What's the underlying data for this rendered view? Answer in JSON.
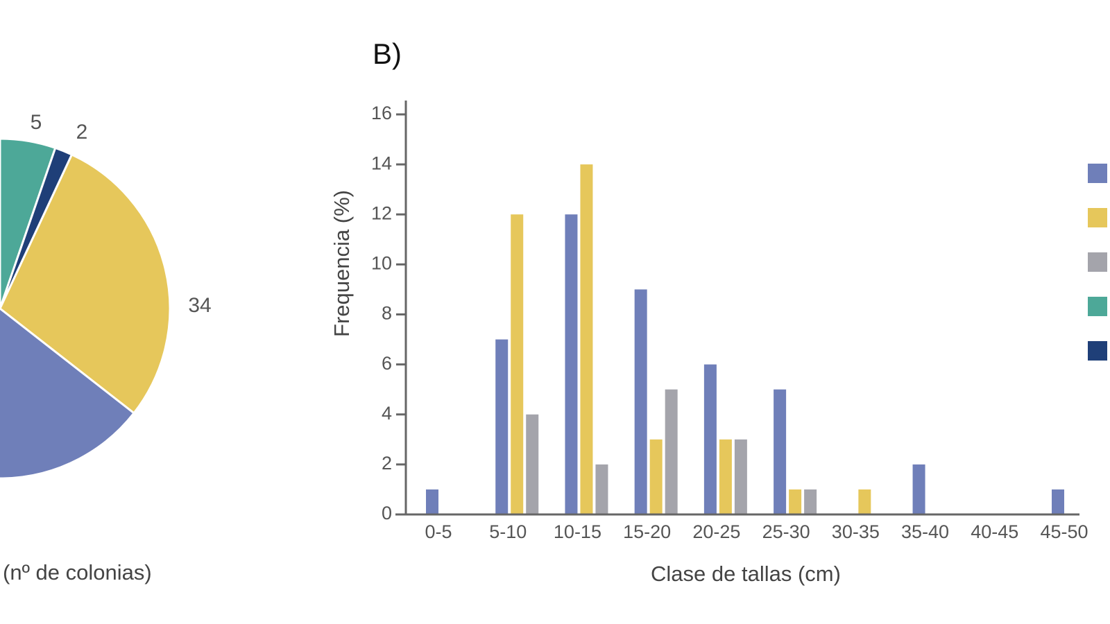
{
  "colors": {
    "blue": "#6f7fb9",
    "yellow": "#e6c75b",
    "gray": "#a4a4ab",
    "teal": "#4da898",
    "navy": "#1f3f78",
    "axis": "#666666",
    "text": "#555555"
  },
  "chart_data": [
    {
      "type": "pie",
      "panel": "",
      "title": "",
      "caption": "(nº de colonias)",
      "slices": [
        {
          "label": "5",
          "value": 5,
          "color": "teal"
        },
        {
          "label": "2",
          "value": 2,
          "color": "navy"
        },
        {
          "label": "34",
          "value": 34,
          "color": "yellow"
        },
        {
          "label": "",
          "value": 20,
          "color": "blue"
        }
      ],
      "note": "pie is cropped at left edge; only slices with visible labels 5, 2, 34 are labeled"
    },
    {
      "type": "bar",
      "panel": "B)",
      "title": "",
      "xlabel": "Clase de tallas (cm)",
      "ylabel": "Frequencia (%)",
      "ylim": [
        0,
        16
      ],
      "yticks": [
        "0",
        "2",
        "4",
        "6",
        "8",
        "10",
        "12",
        "14",
        "16"
      ],
      "categories": [
        "0-5",
        "5-10",
        "10-15",
        "15-20",
        "20-25",
        "25-30",
        "30-35",
        "35-40",
        "40-45",
        "45-50"
      ],
      "series": [
        {
          "color": "blue",
          "values": [
            1,
            7,
            12,
            9,
            6,
            5,
            0,
            2,
            0,
            1
          ]
        },
        {
          "color": "yellow",
          "values": [
            0,
            12,
            14,
            3,
            3,
            1,
            1,
            0,
            0,
            0
          ]
        },
        {
          "color": "gray",
          "values": [
            0,
            4,
            2,
            5,
            3,
            1,
            0,
            0,
            0,
            0
          ]
        }
      ],
      "legend": {
        "placement": "right",
        "swatches": [
          "blue",
          "yellow",
          "gray",
          "teal",
          "navy"
        ]
      }
    }
  ]
}
